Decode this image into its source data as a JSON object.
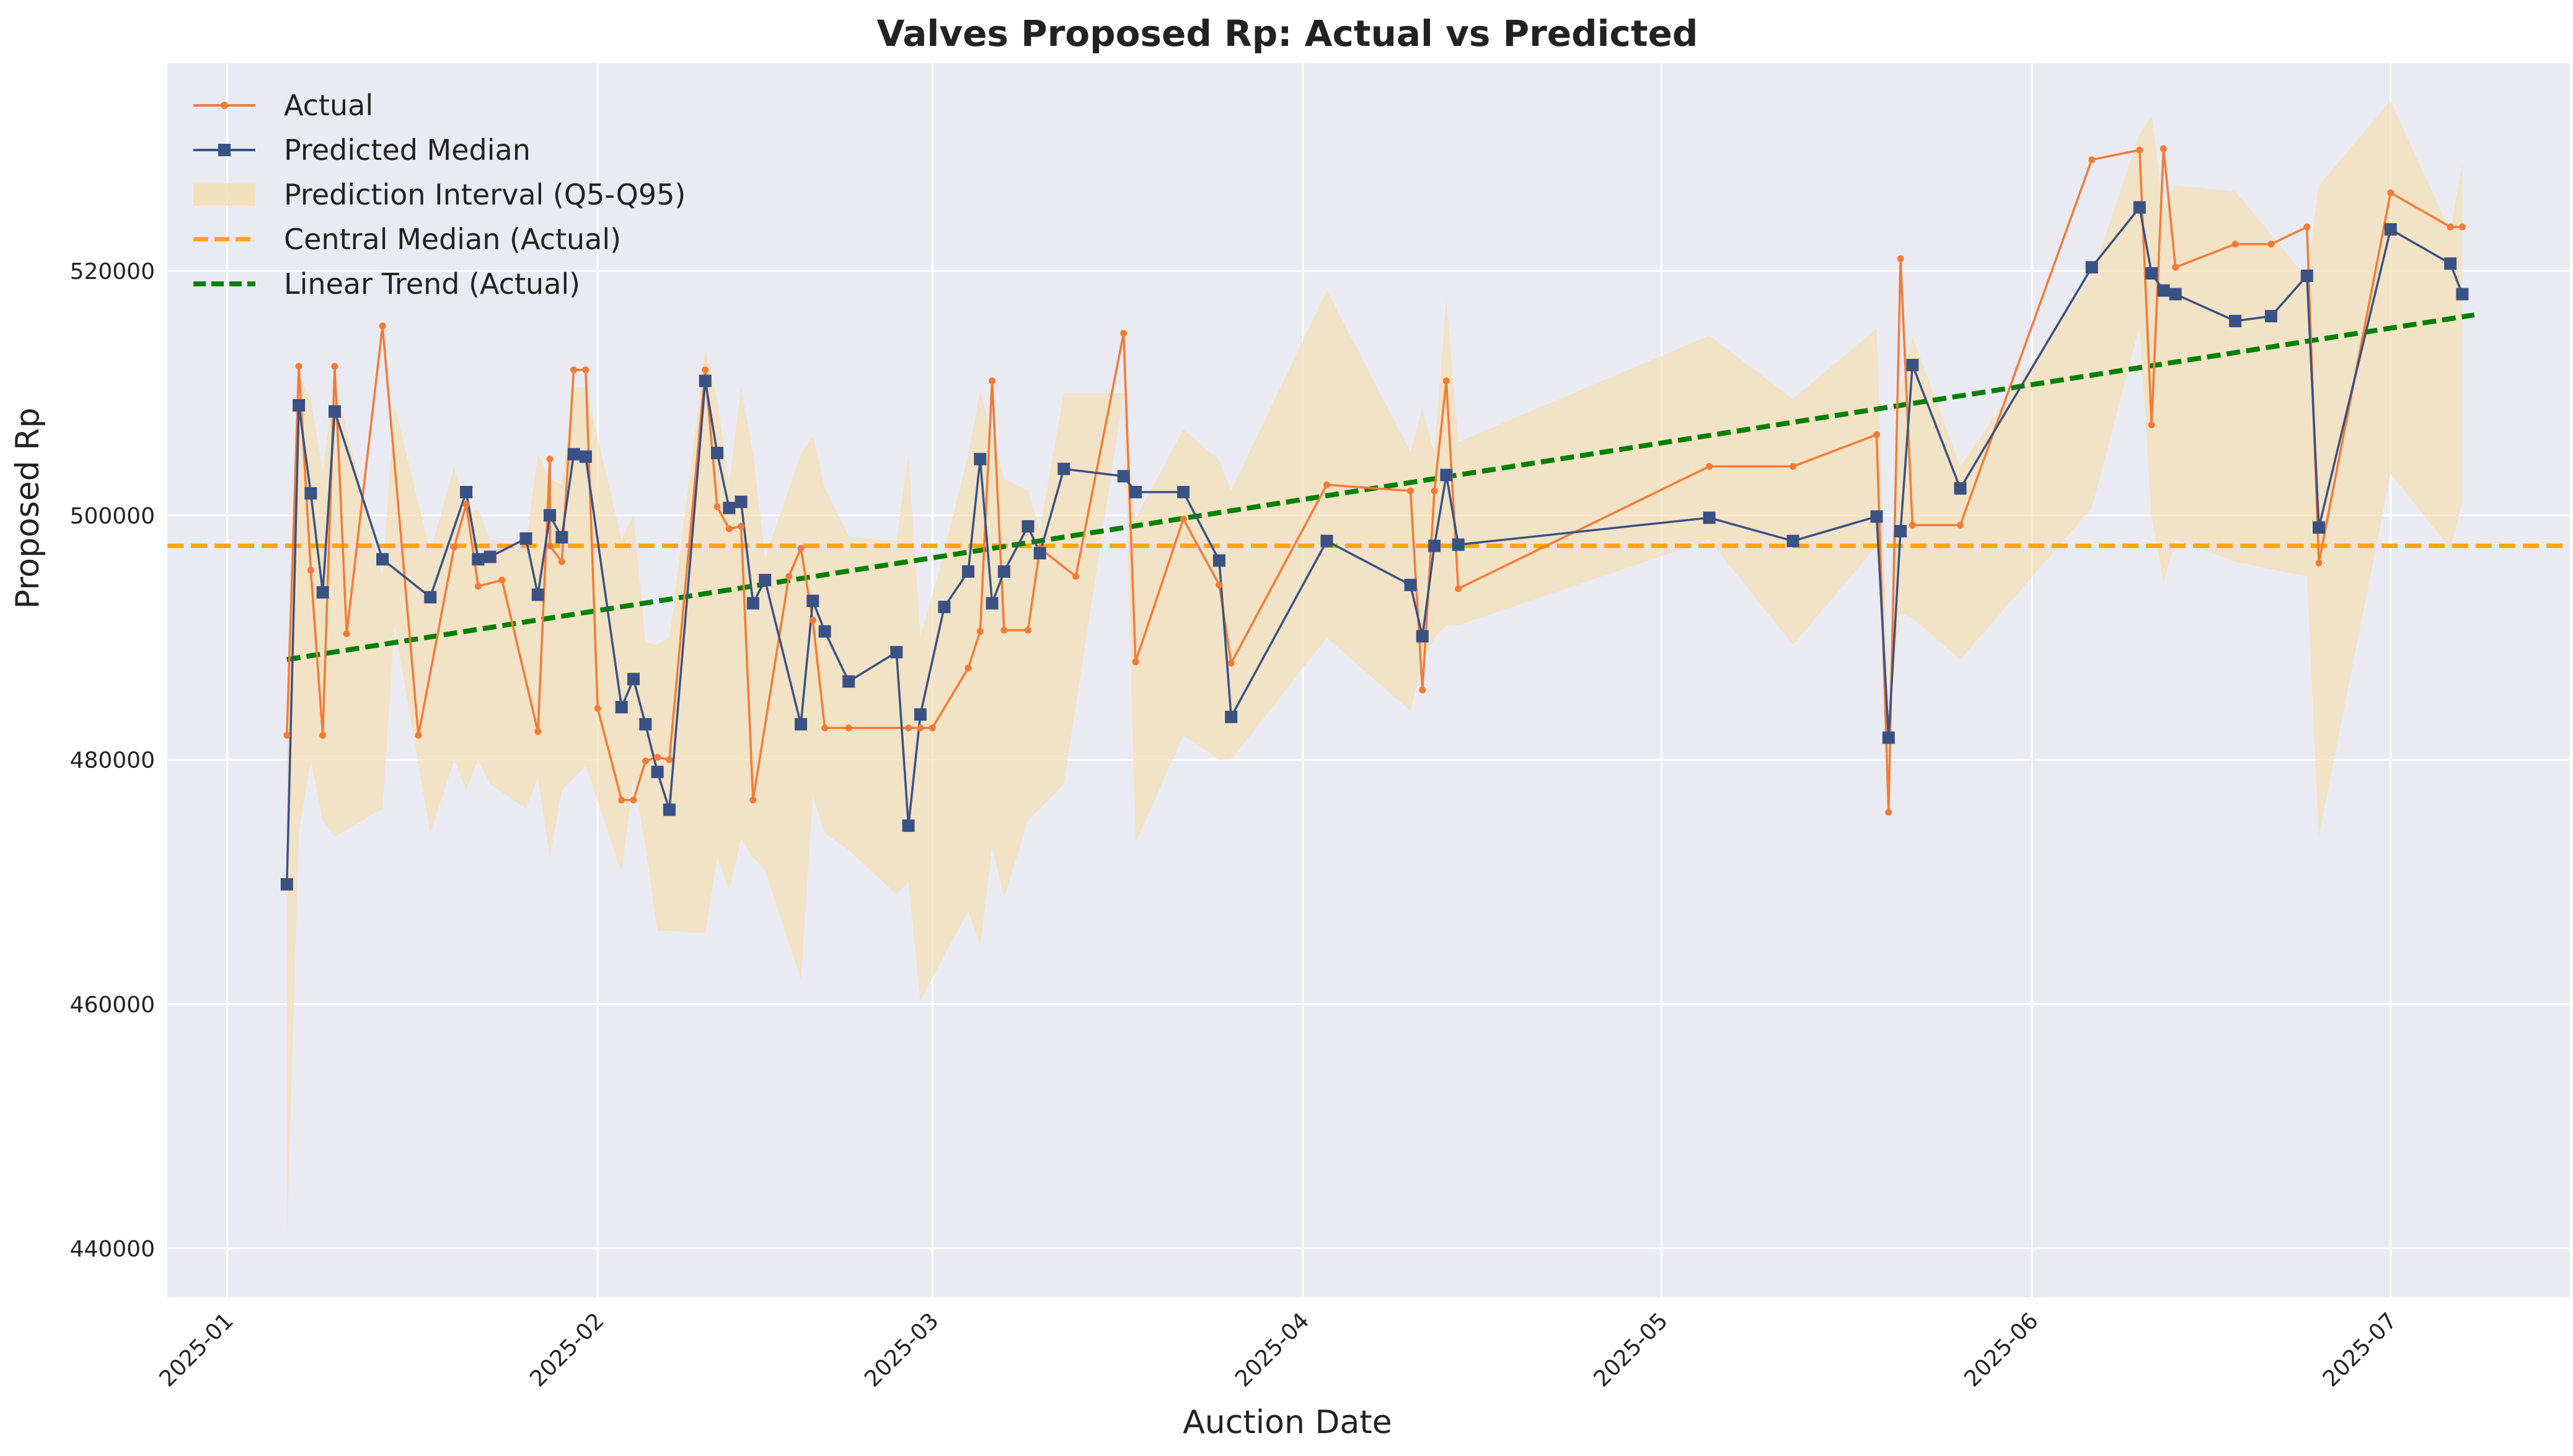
{
  "chart_data": {
    "type": "line",
    "title": "Valves Proposed Rp: Actual vs Predicted",
    "xlabel": "Auction Date",
    "ylabel": "Proposed Rp",
    "xlim": [
      "2024-12-27",
      "2025-07-16"
    ],
    "ylim": [
      436000,
      537000
    ],
    "x_ticks": [
      "2025-01",
      "2025-02",
      "2025-03",
      "2025-04",
      "2025-05",
      "2025-06",
      "2025-07"
    ],
    "x_tick_dates": [
      "2025-01-01",
      "2025-02-01",
      "2025-03-01",
      "2025-04-01",
      "2025-05-01",
      "2025-06-01",
      "2025-07-01"
    ],
    "y_ticks": [
      440000,
      460000,
      480000,
      500000,
      520000
    ],
    "grid": true,
    "legend_position": "top-left",
    "legend": [
      {
        "key": "actual",
        "label": "Actual"
      },
      {
        "key": "predicted",
        "label": "Predicted Median"
      },
      {
        "key": "interval",
        "label": "Prediction Interval (Q5-Q95)"
      },
      {
        "key": "median",
        "label": "Central Median (Actual)"
      },
      {
        "key": "trend",
        "label": "Linear Trend (Actual)"
      }
    ],
    "colors": {
      "actual": "#f47b35",
      "predicted": "#3a5283",
      "interval": "#f5deb3",
      "median": "#ffa500",
      "trend": "#008000",
      "background": "#eaeaf2",
      "grid": "#ffffff"
    },
    "central_median": 497500,
    "trend_line": {
      "x": [
        "2025-01-06",
        "2025-07-08"
      ],
      "y": [
        488200,
        516400
      ]
    },
    "series": [
      {
        "name": "Actual",
        "x": [
          "2025-01-06",
          "2025-01-07",
          "2025-01-08",
          "2025-01-09",
          "2025-01-10",
          "2025-01-11",
          "2025-01-14",
          "2025-01-17",
          "2025-01-20",
          "2025-01-21",
          "2025-01-22",
          "2025-01-24",
          "2025-01-27",
          "2025-01-28",
          "2025-01-28",
          "2025-01-29",
          "2025-01-30",
          "2025-01-31",
          "2025-02-01",
          "2025-02-03",
          "2025-02-04",
          "2025-02-05",
          "2025-02-06",
          "2025-02-07",
          "2025-02-10",
          "2025-02-11",
          "2025-02-12",
          "2025-02-13",
          "2025-02-14",
          "2025-02-17",
          "2025-02-18",
          "2025-02-19",
          "2025-02-20",
          "2025-02-22",
          "2025-02-27",
          "2025-02-28",
          "2025-03-01",
          "2025-03-04",
          "2025-03-05",
          "2025-03-06",
          "2025-03-07",
          "2025-03-09",
          "2025-03-10",
          "2025-03-13",
          "2025-03-17",
          "2025-03-18",
          "2025-03-22",
          "2025-03-25",
          "2025-03-26",
          "2025-04-03",
          "2025-04-10",
          "2025-04-11",
          "2025-04-12",
          "2025-04-13",
          "2025-04-14",
          "2025-05-05",
          "2025-05-12",
          "2025-05-19",
          "2025-05-20",
          "2025-05-21",
          "2025-05-22",
          "2025-05-26",
          "2025-06-06",
          "2025-06-10",
          "2025-06-11",
          "2025-06-12",
          "2025-06-13",
          "2025-06-18",
          "2025-06-21",
          "2025-06-24",
          "2025-06-25",
          "2025-07-01",
          "2025-07-06",
          "2025-07-07"
        ],
        "values": [
          482000,
          512200,
          495500,
          482000,
          512200,
          490300,
          515500,
          482000,
          497400,
          500900,
          494200,
          494700,
          482300,
          504600,
          497500,
          496200,
          511900,
          511900,
          484200,
          476700,
          476700,
          479900,
          480200,
          480000,
          511900,
          500700,
          498900,
          499100,
          476700,
          495000,
          497300,
          491400,
          482600,
          482600,
          482600,
          482600,
          482600,
          487500,
          490500,
          511000,
          490600,
          490600,
          497300,
          495000,
          514900,
          488000,
          499700,
          494300,
          487900,
          502500,
          502000,
          485700,
          502000,
          511000,
          494000,
          504000,
          504000,
          506600,
          475700,
          521000,
          499200,
          499200,
          529100,
          529900,
          507400,
          530000,
          520300,
          522200,
          522200,
          523600,
          496100,
          526400,
          523600,
          523600
        ]
      },
      {
        "name": "Predicted Median",
        "x": [
          "2025-01-06",
          "2025-01-07",
          "2025-01-08",
          "2025-01-09",
          "2025-01-10",
          "2025-01-14",
          "2025-01-18",
          "2025-01-21",
          "2025-01-22",
          "2025-01-23",
          "2025-01-26",
          "2025-01-27",
          "2025-01-28",
          "2025-01-29",
          "2025-01-30",
          "2025-01-31",
          "2025-02-03",
          "2025-02-04",
          "2025-02-05",
          "2025-02-06",
          "2025-02-07",
          "2025-02-10",
          "2025-02-11",
          "2025-02-12",
          "2025-02-13",
          "2025-02-14",
          "2025-02-15",
          "2025-02-18",
          "2025-02-19",
          "2025-02-20",
          "2025-02-22",
          "2025-02-26",
          "2025-02-27",
          "2025-02-28",
          "2025-03-02",
          "2025-03-04",
          "2025-03-05",
          "2025-03-06",
          "2025-03-07",
          "2025-03-09",
          "2025-03-10",
          "2025-03-12",
          "2025-03-17",
          "2025-03-18",
          "2025-03-22",
          "2025-03-25",
          "2025-03-26",
          "2025-04-03",
          "2025-04-10",
          "2025-04-11",
          "2025-04-12",
          "2025-04-13",
          "2025-04-14",
          "2025-05-05",
          "2025-05-12",
          "2025-05-19",
          "2025-05-20",
          "2025-05-21",
          "2025-05-22",
          "2025-05-26",
          "2025-06-06",
          "2025-06-10",
          "2025-06-11",
          "2025-06-12",
          "2025-06-13",
          "2025-06-18",
          "2025-06-21",
          "2025-06-24",
          "2025-06-25",
          "2025-07-01",
          "2025-07-06",
          "2025-07-07"
        ],
        "values": [
          469800,
          509000,
          501800,
          493700,
          508500,
          496400,
          493300,
          501900,
          496400,
          496600,
          498100,
          493500,
          500000,
          498200,
          505000,
          504800,
          484300,
          486600,
          482900,
          479000,
          475900,
          511000,
          505100,
          500600,
          501100,
          492800,
          494700,
          482900,
          493000,
          490500,
          486400,
          488800,
          474600,
          483700,
          492500,
          495400,
          504600,
          492800,
          495400,
          499100,
          496900,
          503800,
          503200,
          501900,
          501900,
          496300,
          483500,
          497900,
          494300,
          490100,
          497500,
          503300,
          497600,
          499800,
          497900,
          499900,
          481800,
          498700,
          512300,
          502200,
          520300,
          525200,
          519800,
          518400,
          518100,
          515900,
          516300,
          519600,
          499000,
          523400,
          520600,
          518100
        ]
      },
      {
        "name": "Prediction Interval (Q5-Q95)",
        "x": [
          "2025-01-06",
          "2025-01-07",
          "2025-01-08",
          "2025-01-09",
          "2025-01-10",
          "2025-01-14",
          "2025-01-15",
          "2025-01-18",
          "2025-01-20",
          "2025-01-21",
          "2025-01-22",
          "2025-01-23",
          "2025-01-26",
          "2025-01-27",
          "2025-01-28",
          "2025-01-29",
          "2025-01-30",
          "2025-01-31",
          "2025-02-03",
          "2025-02-04",
          "2025-02-05",
          "2025-02-06",
          "2025-02-07",
          "2025-02-10",
          "2025-02-11",
          "2025-02-12",
          "2025-02-13",
          "2025-02-14",
          "2025-02-15",
          "2025-02-18",
          "2025-02-19",
          "2025-02-20",
          "2025-02-22",
          "2025-02-26",
          "2025-02-27",
          "2025-02-28",
          "2025-03-02",
          "2025-03-04",
          "2025-03-05",
          "2025-03-06",
          "2025-03-07",
          "2025-03-09",
          "2025-03-10",
          "2025-03-12",
          "2025-03-17",
          "2025-03-18",
          "2025-03-22",
          "2025-03-25",
          "2025-03-26",
          "2025-04-03",
          "2025-04-10",
          "2025-04-11",
          "2025-04-12",
          "2025-04-13",
          "2025-04-14",
          "2025-05-05",
          "2025-05-12",
          "2025-05-19",
          "2025-05-20",
          "2025-05-21",
          "2025-05-22",
          "2025-05-26",
          "2025-06-06",
          "2025-06-10",
          "2025-06-11",
          "2025-06-12",
          "2025-06-13",
          "2025-06-18",
          "2025-06-21",
          "2025-06-24",
          "2025-06-25",
          "2025-07-01",
          "2025-07-06",
          "2025-07-07"
        ],
        "lower": [
          440800,
          474000,
          480000,
          475000,
          473700,
          476000,
          491000,
          474000,
          480000,
          477500,
          480000,
          478000,
          476000,
          478500,
          472000,
          477500,
          478500,
          479500,
          470800,
          478500,
          473000,
          466000,
          466000,
          465800,
          472000,
          469400,
          473500,
          472000,
          471000,
          462000,
          477000,
          474000,
          472600,
          469000,
          470000,
          460300,
          464000,
          467600,
          464800,
          472900,
          468700,
          475000,
          476000,
          478000,
          510000,
          473200,
          482000,
          480000,
          480000,
          490000,
          484000,
          488000,
          490000,
          491000,
          491000,
          498000,
          489400,
          497500,
          484000,
          492000,
          491600,
          488200,
          500600,
          515500,
          500000,
          494500,
          498000,
          496200,
          495600,
          495000,
          473800,
          503400,
          497300,
          501100
        ],
        "upper": [
          481000,
          511500,
          509500,
          503600,
          511000,
          495000,
          509000,
          497000,
          504000,
          500000,
          500500,
          498000,
          497500,
          505000,
          503000,
          502500,
          510500,
          510500,
          498000,
          500000,
          489600,
          489400,
          490000,
          513500,
          509500,
          502500,
          510500,
          505000,
          496500,
          505000,
          506500,
          502200,
          498300,
          497900,
          505000,
          490000,
          497000,
          505000,
          510100,
          506600,
          503000,
          502000,
          498800,
          510000,
          510000,
          499700,
          507000,
          504500,
          502000,
          518400,
          505200,
          508800,
          505000,
          517700,
          506000,
          514700,
          509500,
          515300,
          484200,
          510000,
          514600,
          504000,
          519600,
          531200,
          532700,
          525000,
          527000,
          526500,
          523000,
          519400,
          527000,
          533900,
          523200,
          528800
        ]
      }
    ]
  }
}
